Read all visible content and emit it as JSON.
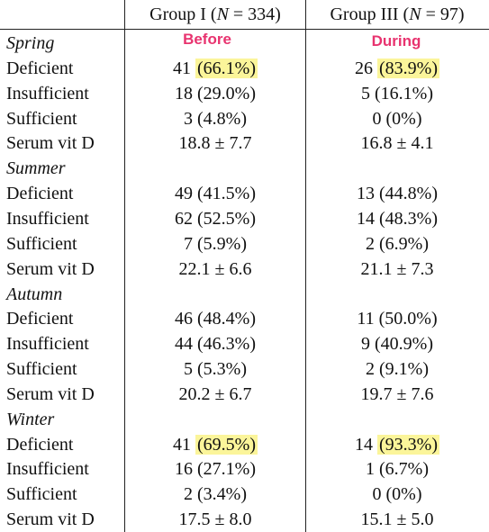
{
  "header": {
    "col1": {
      "prefix": "Group I (",
      "n_symbol": "N",
      "eq": " = 334)"
    },
    "col2": {
      "prefix": "Group III (",
      "n_symbol": "N",
      "eq": " = 97)"
    }
  },
  "annotations": {
    "before": "Before",
    "during": "During",
    "highlight_color": "#fbf59a",
    "annotation_color": "#e8336f"
  },
  "rows": [
    {
      "type": "season",
      "label": "Spring"
    },
    {
      "type": "data",
      "label": "Deficient",
      "g1": "41",
      "g1_pct": "(66.1%)",
      "g1_hl": true,
      "g3": "26",
      "g3_pct": "(83.9%)",
      "g3_hl": true
    },
    {
      "type": "data",
      "label": "Insufficient",
      "g1": "18",
      "g1_pct": "(29.0%)",
      "g3": "5",
      "g3_pct": "(16.1%)"
    },
    {
      "type": "data",
      "label": "Sufficient",
      "g1": "3",
      "g1_pct": "(4.8%)",
      "g3": "0",
      "g3_pct": "(0%)"
    },
    {
      "type": "serum",
      "label": "Serum vit D",
      "g1": "18.8 ± 7.7",
      "g3": "16.8 ± 4.1"
    },
    {
      "type": "season",
      "label": "Summer"
    },
    {
      "type": "data",
      "label": "Deficient",
      "g1": "49",
      "g1_pct": "(41.5%)",
      "g3": "13",
      "g3_pct": "(44.8%)"
    },
    {
      "type": "data",
      "label": "Insufficient",
      "g1": "62",
      "g1_pct": "(52.5%)",
      "g3": "14",
      "g3_pct": "(48.3%)"
    },
    {
      "type": "data",
      "label": "Sufficient",
      "g1": "7",
      "g1_pct": "(5.9%)",
      "g3": "2",
      "g3_pct": "(6.9%)"
    },
    {
      "type": "serum",
      "label": "Serum vit D",
      "g1": "22.1 ± 6.6",
      "g3": "21.1 ± 7.3"
    },
    {
      "type": "season",
      "label": "Autumn"
    },
    {
      "type": "data",
      "label": "Deficient",
      "g1": "46",
      "g1_pct": "(48.4%)",
      "g3": "11",
      "g3_pct": "(50.0%)"
    },
    {
      "type": "data",
      "label": "Insufficient",
      "g1": "44",
      "g1_pct": "(46.3%)",
      "g3": "9",
      "g3_pct": "(40.9%)"
    },
    {
      "type": "data",
      "label": "Sufficient",
      "g1": "5",
      "g1_pct": "(5.3%)",
      "g3": "2",
      "g3_pct": "(9.1%)"
    },
    {
      "type": "serum",
      "label": "Serum vit D",
      "g1": "20.2 ± 6.7",
      "g3": "19.7 ± 7.6"
    },
    {
      "type": "season",
      "label": "Winter"
    },
    {
      "type": "data",
      "label": "Deficient",
      "g1": "41",
      "g1_pct": "(69.5%)",
      "g1_hl": true,
      "g3": "14",
      "g3_pct": "(93.3%)",
      "g3_hl": true
    },
    {
      "type": "data",
      "label": "Insufficient",
      "g1": "16",
      "g1_pct": "(27.1%)",
      "g3": "1",
      "g3_pct": "(6.7%)"
    },
    {
      "type": "data",
      "label": "Sufficient",
      "g1": "2",
      "g1_pct": "(3.4%)",
      "g3": "0",
      "g3_pct": "(0%)"
    },
    {
      "type": "serum",
      "label": "Serum vit D",
      "g1": "17.5 ± 8.0",
      "g3": "15.1 ± 5.0"
    }
  ]
}
